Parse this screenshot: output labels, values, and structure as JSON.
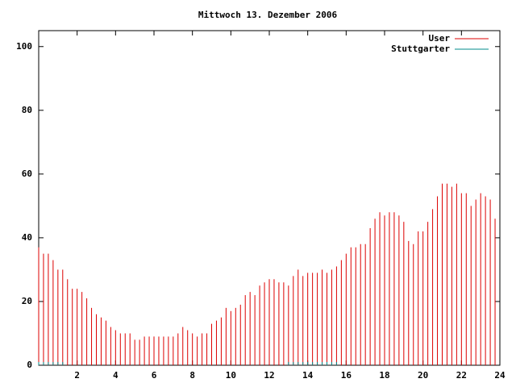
{
  "chart_data": {
    "type": "impulses",
    "title": "Mittwoch 13. Dezember 2006",
    "x": [
      0,
      0.25,
      0.5,
      0.75,
      1,
      1.25,
      1.5,
      1.75,
      2,
      2.25,
      2.5,
      2.75,
      3,
      3.25,
      3.5,
      3.75,
      4,
      4.25,
      4.5,
      4.75,
      5,
      5.25,
      5.5,
      5.75,
      6,
      6.25,
      6.5,
      6.75,
      7,
      7.25,
      7.5,
      7.75,
      8,
      8.25,
      8.5,
      8.75,
      9,
      9.25,
      9.5,
      9.75,
      10,
      10.25,
      10.5,
      10.75,
      11,
      11.25,
      11.5,
      11.75,
      12,
      12.25,
      12.5,
      12.75,
      13,
      13.25,
      13.5,
      13.75,
      14,
      14.25,
      14.5,
      14.75,
      15,
      15.25,
      15.5,
      15.75,
      16,
      16.25,
      16.5,
      16.75,
      17,
      17.25,
      17.5,
      17.75,
      18,
      18.25,
      18.5,
      18.75,
      19,
      19.25,
      19.5,
      19.75,
      20,
      20.25,
      20.5,
      20.75,
      21,
      21.25,
      21.5,
      21.75,
      22,
      22.25,
      22.5,
      22.75,
      23,
      23.25,
      23.5,
      23.75
    ],
    "series": [
      {
        "name": "User",
        "color": "#dd0000",
        "values": [
          37,
          35,
          35,
          33,
          30,
          30,
          27,
          24,
          24,
          23,
          21,
          18,
          16,
          15,
          14,
          12,
          11,
          10,
          10,
          10,
          8,
          8,
          9,
          9,
          9,
          9,
          9,
          9,
          9,
          10,
          12,
          11,
          10,
          9,
          10,
          10,
          13,
          14,
          15,
          18,
          17,
          18,
          19,
          22,
          23,
          22,
          25,
          26,
          27,
          27,
          26,
          26,
          25,
          28,
          30,
          28,
          29,
          29,
          29,
          30,
          29,
          30,
          31,
          33,
          35,
          37,
          37,
          38,
          38,
          43,
          46,
          48,
          47,
          48,
          48,
          47,
          45,
          39,
          38,
          42,
          42,
          45,
          49,
          53,
          57,
          57,
          56,
          57,
          54,
          54,
          50,
          52,
          54,
          53,
          52,
          46
        ]
      },
      {
        "name": "Stuttgarter",
        "color": "#008b8b",
        "values": [
          1,
          1,
          1,
          1,
          1,
          1,
          null,
          null,
          null,
          null,
          null,
          null,
          null,
          null,
          null,
          null,
          null,
          null,
          null,
          null,
          null,
          null,
          null,
          null,
          null,
          null,
          null,
          null,
          null,
          null,
          null,
          null,
          null,
          null,
          null,
          null,
          null,
          null,
          null,
          null,
          null,
          null,
          null,
          null,
          null,
          null,
          null,
          null,
          null,
          null,
          null,
          null,
          1,
          1,
          1,
          1,
          1,
          1,
          1,
          1,
          1,
          1,
          1,
          null,
          null,
          null,
          null,
          null,
          null,
          null,
          null,
          null,
          null,
          null,
          null,
          null,
          null,
          null,
          null,
          null,
          null,
          null,
          null,
          null,
          null,
          null,
          null,
          null,
          null,
          null,
          null,
          null,
          null,
          null,
          null,
          null
        ]
      }
    ],
    "xlim": [
      0,
      24
    ],
    "xticks": [
      2,
      4,
      6,
      8,
      10,
      12,
      14,
      16,
      18,
      20,
      22,
      24
    ],
    "ylim": [
      0,
      105
    ],
    "yticks": [
      0,
      20,
      40,
      60,
      80,
      100
    ],
    "legend": "top-right"
  }
}
